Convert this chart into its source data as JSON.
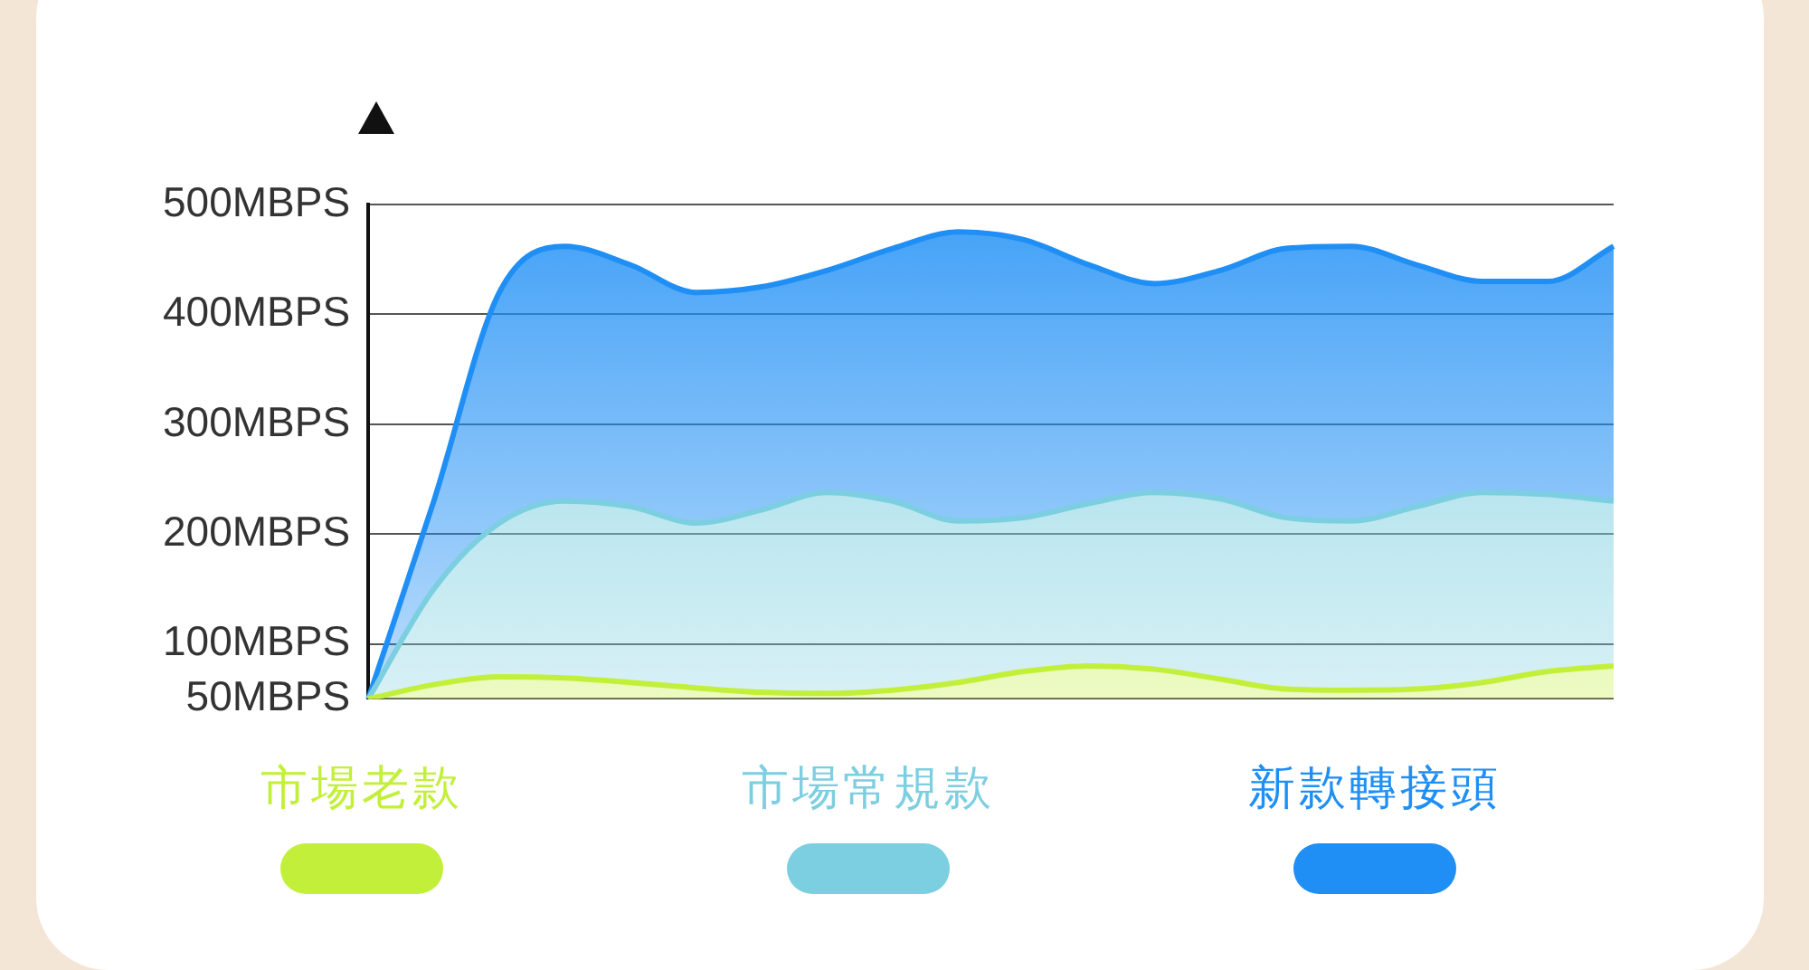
{
  "chart_data": {
    "type": "area",
    "categories": [
      null,
      null,
      null,
      null,
      null,
      null,
      null,
      null,
      null,
      null,
      null,
      null,
      null,
      null,
      null,
      null,
      null,
      null,
      null,
      null
    ],
    "series": [
      {
        "name": "市場老款",
        "color": "#c2f03a",
        "values": [
          50,
          63,
          70,
          69,
          65,
          60,
          56,
          55,
          58,
          65,
          75,
          80,
          77,
          68,
          59,
          58,
          59,
          65,
          75,
          80
        ]
      },
      {
        "name": "市場常規款",
        "color": "#7ccfe0",
        "values": [
          50,
          150,
          210,
          230,
          225,
          210,
          222,
          238,
          230,
          212,
          215,
          228,
          238,
          232,
          215,
          212,
          225,
          238,
          236,
          230
        ]
      },
      {
        "name": "新款轉接頭",
        "color": "#1f8ff5",
        "values": [
          50,
          230,
          420,
          462,
          445,
          420,
          425,
          440,
          460,
          475,
          468,
          445,
          428,
          440,
          460,
          462,
          445,
          430,
          430,
          462
        ]
      }
    ],
    "ylim": [
      50,
      500
    ],
    "yticks": [
      {
        "value": 50,
        "label": "50MBPS"
      },
      {
        "value": 100,
        "label": "100MBPS"
      },
      {
        "value": 200,
        "label": "200MBPS"
      },
      {
        "value": 300,
        "label": "300MBPS"
      },
      {
        "value": 400,
        "label": "400MBPS"
      },
      {
        "value": 500,
        "label": "500MBPS"
      }
    ],
    "grid": "y",
    "legend": "bottom",
    "line_style": "solid",
    "marker": "none"
  }
}
